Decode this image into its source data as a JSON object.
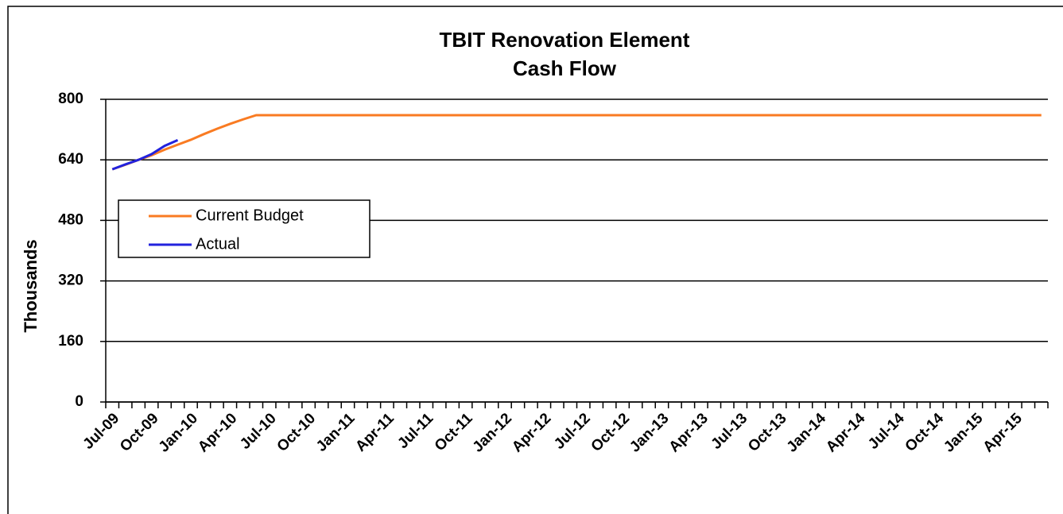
{
  "chart_data": {
    "type": "line",
    "title": "TBIT Renovation Element",
    "subtitle": "Cash Flow",
    "y_label": "Thousands",
    "categories": [
      "Jul-09",
      null,
      null,
      "Oct-09",
      null,
      null,
      "Jan-10",
      null,
      null,
      "Apr-10",
      null,
      null,
      "Jul-10",
      null,
      null,
      "Oct-10",
      null,
      null,
      "Jan-11",
      null,
      null,
      "Apr-11",
      null,
      null,
      "Jul-11",
      null,
      null,
      "Oct-11",
      null,
      null,
      "Jan-12",
      null,
      null,
      "Apr-12",
      null,
      null,
      "Jul-12",
      null,
      null,
      "Oct-12",
      null,
      null,
      "Jan-13",
      null,
      null,
      "Apr-13",
      null,
      null,
      "Jul-13",
      null,
      null,
      "Oct-13",
      null,
      null,
      "Jan-14",
      null,
      null,
      "Apr-14",
      null,
      null,
      "Jul-14",
      null,
      null,
      "Oct-14",
      null,
      null,
      "Jan-15",
      null,
      null,
      "Apr-15",
      null,
      null
    ],
    "series": [
      {
        "name": "Current Budget",
        "color": "#f97b22",
        "values": [
          615,
          627,
          640,
          652,
          667,
          680,
          693,
          708,
          722,
          735,
          747,
          758,
          758,
          758,
          758,
          758,
          758,
          758,
          758,
          758,
          758,
          758,
          758,
          758,
          758,
          758,
          758,
          758,
          758,
          758,
          758,
          758,
          758,
          758,
          758,
          758,
          758,
          758,
          758,
          758,
          758,
          758,
          758,
          758,
          758,
          758,
          758,
          758,
          758,
          758,
          758,
          758,
          758,
          758,
          758,
          758,
          758,
          758,
          758,
          758,
          758,
          758,
          758,
          758,
          758,
          758,
          758,
          758,
          758,
          758,
          758,
          758
        ]
      },
      {
        "name": "Actual",
        "color": "#2222dd",
        "values": [
          615,
          628,
          640,
          655,
          677,
          692,
          null,
          null,
          null,
          null,
          null,
          null,
          null,
          null,
          null,
          null,
          null,
          null,
          null,
          null,
          null,
          null,
          null,
          null,
          null,
          null,
          null,
          null,
          null,
          null,
          null,
          null,
          null,
          null,
          null,
          null,
          null,
          null,
          null,
          null,
          null,
          null,
          null,
          null,
          null,
          null,
          null,
          null,
          null,
          null,
          null,
          null,
          null,
          null,
          null,
          null,
          null,
          null,
          null,
          null,
          null,
          null,
          null,
          null,
          null,
          null,
          null,
          null,
          null,
          null,
          null,
          null
        ]
      }
    ],
    "ylim": [
      0,
      800
    ],
    "yticks": [
      0,
      160,
      320,
      480,
      640,
      800
    ],
    "grid": true,
    "legend": "upper left"
  }
}
